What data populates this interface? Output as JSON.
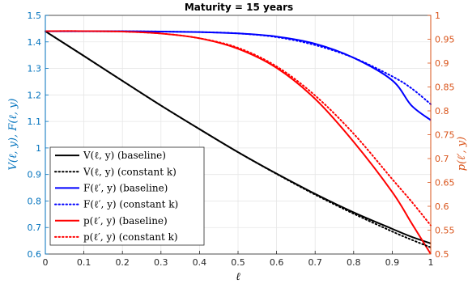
{
  "chart_data": {
    "type": "line",
    "title": "Maturity = 15 years",
    "xlabel": "ℓ",
    "ylabel_left": "V(ℓ, y), F(ℓ, y)",
    "ylabel_right": "p(ℓ′, y)",
    "xlim": [
      0,
      1
    ],
    "ylim_left": [
      0.6,
      1.5
    ],
    "ylim_right": [
      0.5,
      1.0
    ],
    "x_ticks": [
      "0",
      "0.1",
      "0.2",
      "0.3",
      "0.4",
      "0.5",
      "0.6",
      "0.7",
      "0.8",
      "0.9",
      "1"
    ],
    "y_left_ticks": [
      "0.6",
      "0.7",
      "0.8",
      "0.9",
      "1",
      "1.1",
      "1.2",
      "1.3",
      "1.4",
      "1.5"
    ],
    "y_right_ticks": [
      "0.5",
      "0.55",
      "0.6",
      "0.65",
      "0.7",
      "0.75",
      "0.8",
      "0.85",
      "0.9",
      "0.95",
      "1"
    ],
    "grid": true,
    "legend_position": "bottom-left",
    "colors": {
      "left_axis": "#0072BD",
      "right_axis": "#D95319",
      "black": "#000000",
      "blue": "#0000ff",
      "red": "#ff0000"
    },
    "x": [
      0,
      0.1,
      0.2,
      0.3,
      0.4,
      0.5,
      0.6,
      0.7,
      0.8,
      0.9,
      0.95,
      1.0
    ],
    "series": [
      {
        "name": "V(ℓ, y) (baseline)",
        "axis": "left",
        "color": "#000000",
        "dash": "solid",
        "values": [
          1.44,
          1.347,
          1.253,
          1.16,
          1.071,
          0.984,
          0.903,
          0.827,
          0.757,
          0.695,
          0.665,
          0.64
        ]
      },
      {
        "name": "V(ℓ, y) (constant k)",
        "axis": "left",
        "color": "#000000",
        "dash": "dotted",
        "values": [
          1.44,
          1.347,
          1.253,
          1.16,
          1.071,
          0.984,
          0.902,
          0.824,
          0.752,
          0.685,
          0.654,
          0.625
        ]
      },
      {
        "name": "F(ℓ′, y) (baseline)",
        "axis": "left",
        "color": "#0000ff",
        "dash": "solid",
        "values": [
          1.44,
          1.44,
          1.44,
          1.439,
          1.437,
          1.432,
          1.42,
          1.393,
          1.34,
          1.255,
          1.16,
          1.105
        ]
      },
      {
        "name": "F(ℓ′, y) (constant k)",
        "axis": "left",
        "color": "#0000ff",
        "dash": "dotted",
        "values": [
          1.44,
          1.44,
          1.44,
          1.439,
          1.437,
          1.432,
          1.418,
          1.388,
          1.34,
          1.27,
          1.225,
          1.165
        ]
      },
      {
        "name": "p(ℓ′, y) (baseline)",
        "axis": "right",
        "color": "#ff0000",
        "dash": "solid",
        "values": [
          0.967,
          0.967,
          0.966,
          0.962,
          0.952,
          0.93,
          0.89,
          0.825,
          0.735,
          0.63,
          0.565,
          0.5
        ]
      },
      {
        "name": "p(ℓ′, y) (constant k)",
        "axis": "right",
        "color": "#ff0000",
        "dash": "dotted",
        "values": [
          0.967,
          0.967,
          0.966,
          0.962,
          0.952,
          0.932,
          0.893,
          0.832,
          0.752,
          0.657,
          0.61,
          0.56
        ]
      }
    ]
  }
}
